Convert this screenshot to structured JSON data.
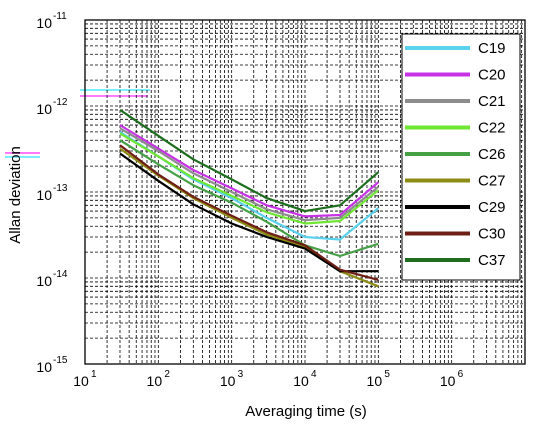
{
  "chart_data": {
    "type": "line",
    "xlabel": "Averaging time (s)",
    "ylabel": "Allan deviation",
    "x_scale": "log",
    "y_scale": "log",
    "xlim": [
      10,
      10000000
    ],
    "ylim": [
      1e-15,
      1e-11
    ],
    "x_ticks": [
      {
        "base": "10",
        "exp": "1"
      },
      {
        "base": "10",
        "exp": "2"
      },
      {
        "base": "10",
        "exp": "3"
      },
      {
        "base": "10",
        "exp": "4"
      },
      {
        "base": "10",
        "exp": "5"
      },
      {
        "base": "10",
        "exp": "6"
      }
    ],
    "y_ticks": [
      {
        "base": "10",
        "exp": "-15"
      },
      {
        "base": "10",
        "exp": "-14"
      },
      {
        "base": "10",
        "exp": "-13"
      },
      {
        "base": "10",
        "exp": "-12"
      },
      {
        "base": "10",
        "exp": "-11"
      }
    ],
    "grid": true,
    "grid_style": "dashed",
    "legend_position": "top-right",
    "x": [
      30,
      100,
      300,
      1000,
      3000,
      10000,
      30000,
      100000
    ],
    "series": [
      {
        "name": "C19",
        "color": "#5ad2ee",
        "values": [
          5e-13,
          2.6e-13,
          1.4e-13,
          8.5e-14,
          5e-14,
          3e-14,
          2.8e-14,
          6.5e-14
        ]
      },
      {
        "name": "C20",
        "color": "#c832e6",
        "values": [
          6e-13,
          3.2e-13,
          1.8e-13,
          1.1e-13,
          7e-14,
          5.2e-14,
          5.4e-14,
          1.3e-13
        ]
      },
      {
        "name": "C21",
        "color": "#8c8c8c",
        "values": [
          5.5e-13,
          3e-13,
          1.65e-13,
          1e-13,
          6.3e-14,
          4.7e-14,
          5e-14,
          1.15e-13
        ]
      },
      {
        "name": "C22",
        "color": "#6ee632",
        "values": [
          4.8e-13,
          2.6e-13,
          1.45e-13,
          9e-14,
          5.8e-14,
          4.3e-14,
          4.6e-14,
          1.05e-13
        ]
      },
      {
        "name": "C26",
        "color": "#46a046",
        "values": [
          4e-13,
          2.1e-13,
          1.2e-13,
          7.5e-14,
          4.5e-14,
          2.4e-14,
          1.8e-14,
          2.5e-14
        ]
      },
      {
        "name": "C27",
        "color": "#8c8c14",
        "values": [
          3.2e-13,
          1.55e-13,
          8.5e-14,
          5e-14,
          3.2e-14,
          2.3e-14,
          1.2e-14,
          8e-15
        ]
      },
      {
        "name": "C29",
        "color": "#000000",
        "values": [
          2.8e-13,
          1.35e-13,
          7.2e-14,
          4.3e-14,
          3e-14,
          2.2e-14,
          1.2e-14,
          1.2e-14
        ]
      },
      {
        "name": "C30",
        "color": "#6e1e14",
        "values": [
          3.5e-13,
          1.6e-13,
          8.8e-14,
          5.3e-14,
          3.4e-14,
          2.4e-14,
          1.25e-14,
          9.5e-15
        ]
      },
      {
        "name": "C37",
        "color": "#1e6e1e",
        "values": [
          9e-13,
          4.5e-13,
          2.4e-13,
          1.4e-13,
          8.5e-14,
          6e-14,
          7e-14,
          1.7e-13
        ]
      }
    ]
  }
}
